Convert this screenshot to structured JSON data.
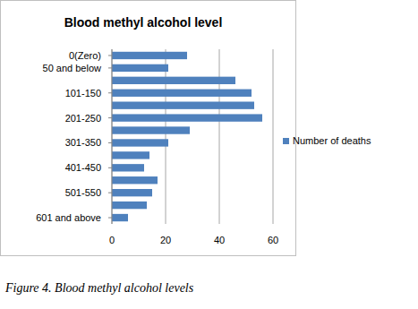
{
  "chart_data": {
    "type": "bar",
    "orientation": "horizontal",
    "title": "Blood methyl alcohol level",
    "categories": [
      "0(Zero)",
      "50 and below",
      null,
      "101-150",
      null,
      "201-250",
      null,
      "301-350",
      null,
      "401-450",
      null,
      "501-550",
      null,
      "601 and above"
    ],
    "series": [
      {
        "name": "Number of deaths",
        "color": "#4f81bd",
        "values": [
          28,
          21,
          46,
          52,
          53,
          56,
          29,
          21,
          14,
          12,
          17,
          15,
          13,
          6
        ]
      }
    ],
    "xlim": [
      0,
      60
    ],
    "xticks": [
      0,
      20,
      40,
      60
    ],
    "grid": true,
    "legend": "right"
  },
  "figure_caption": "Figure 4. Blood methyl alcohol levels"
}
